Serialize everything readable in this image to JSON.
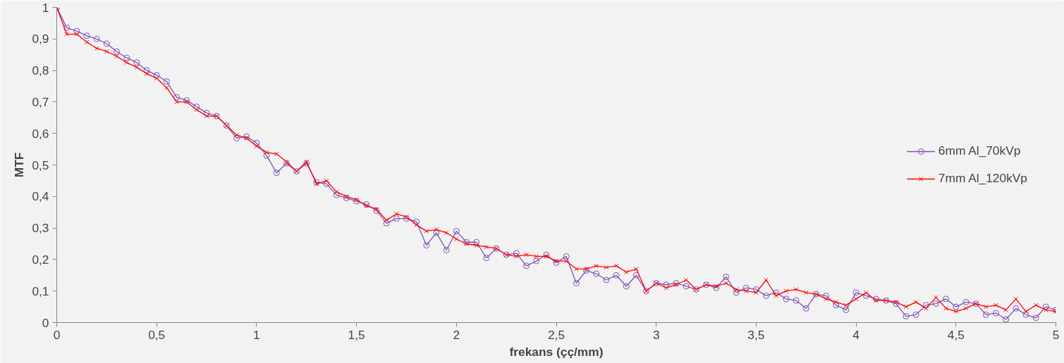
{
  "chart_data": {
    "type": "line",
    "xlabel": "frekans (çç/mm)",
    "ylabel": "MTF",
    "x": [
      0,
      0.05,
      0.1,
      0.15,
      0.2,
      0.25,
      0.3,
      0.35,
      0.4,
      0.45,
      0.5,
      0.55,
      0.6,
      0.65,
      0.7,
      0.75,
      0.8,
      0.85,
      0.9,
      0.95,
      1.0,
      1.05,
      1.1,
      1.15,
      1.2,
      1.25,
      1.3,
      1.35,
      1.4,
      1.45,
      1.5,
      1.55,
      1.6,
      1.65,
      1.7,
      1.75,
      1.8,
      1.85,
      1.9,
      1.95,
      2.0,
      2.05,
      2.1,
      2.15,
      2.2,
      2.25,
      2.3,
      2.35,
      2.4,
      2.45,
      2.5,
      2.55,
      2.6,
      2.65,
      2.7,
      2.75,
      2.8,
      2.85,
      2.9,
      2.95,
      3.0,
      3.05,
      3.1,
      3.15,
      3.2,
      3.25,
      3.3,
      3.35,
      3.4,
      3.45,
      3.5,
      3.55,
      3.6,
      3.65,
      3.7,
      3.75,
      3.8,
      3.85,
      3.9,
      3.95,
      4.0,
      4.05,
      4.1,
      4.15,
      4.2,
      4.25,
      4.3,
      4.35,
      4.4,
      4.45,
      4.5,
      4.55,
      4.6,
      4.65,
      4.7,
      4.75,
      4.8,
      4.85,
      4.9,
      4.95,
      5.0
    ],
    "series": [
      {
        "name": "6mm Al_70kVp",
        "color": "#7f52b8",
        "marker": "circle",
        "values": [
          1.0,
          0.935,
          0.925,
          0.91,
          0.9,
          0.885,
          0.86,
          0.84,
          0.825,
          0.8,
          0.785,
          0.765,
          0.715,
          0.705,
          0.685,
          0.665,
          0.655,
          0.625,
          0.585,
          0.59,
          0.57,
          0.53,
          0.475,
          0.505,
          0.48,
          0.505,
          0.445,
          0.44,
          0.405,
          0.395,
          0.385,
          0.375,
          0.355,
          0.315,
          0.33,
          0.33,
          0.32,
          0.245,
          0.285,
          0.23,
          0.29,
          0.255,
          0.255,
          0.205,
          0.235,
          0.215,
          0.22,
          0.18,
          0.195,
          0.215,
          0.19,
          0.21,
          0.125,
          0.165,
          0.155,
          0.135,
          0.15,
          0.115,
          0.15,
          0.1,
          0.125,
          0.12,
          0.125,
          0.115,
          0.105,
          0.12,
          0.11,
          0.145,
          0.095,
          0.11,
          0.105,
          0.085,
          0.095,
          0.075,
          0.07,
          0.045,
          0.09,
          0.085,
          0.055,
          0.04,
          0.095,
          0.085,
          0.075,
          0.07,
          0.06,
          0.02,
          0.025,
          0.055,
          0.06,
          0.075,
          0.05,
          0.065,
          0.06,
          0.025,
          0.03,
          0.01,
          0.045,
          0.025,
          0.015,
          0.05,
          0.04
        ]
      },
      {
        "name": "7mm Al_120kVp",
        "color": "#ff0000",
        "marker": "cross",
        "values": [
          1.0,
          0.915,
          0.915,
          0.89,
          0.87,
          0.86,
          0.845,
          0.825,
          0.81,
          0.79,
          0.775,
          0.745,
          0.7,
          0.7,
          0.675,
          0.655,
          0.655,
          0.625,
          0.595,
          0.585,
          0.56,
          0.54,
          0.535,
          0.51,
          0.48,
          0.51,
          0.44,
          0.45,
          0.415,
          0.4,
          0.39,
          0.37,
          0.36,
          0.325,
          0.345,
          0.335,
          0.31,
          0.29,
          0.295,
          0.285,
          0.265,
          0.25,
          0.245,
          0.24,
          0.235,
          0.215,
          0.21,
          0.215,
          0.21,
          0.21,
          0.195,
          0.195,
          0.17,
          0.17,
          0.18,
          0.175,
          0.18,
          0.16,
          0.17,
          0.1,
          0.125,
          0.11,
          0.12,
          0.135,
          0.105,
          0.12,
          0.115,
          0.125,
          0.105,
          0.1,
          0.095,
          0.135,
          0.085,
          0.1,
          0.105,
          0.095,
          0.09,
          0.075,
          0.065,
          0.055,
          0.075,
          0.095,
          0.07,
          0.07,
          0.065,
          0.05,
          0.065,
          0.045,
          0.08,
          0.045,
          0.035,
          0.045,
          0.06,
          0.05,
          0.055,
          0.04,
          0.075,
          0.035,
          0.055,
          0.04,
          0.035
        ]
      }
    ],
    "xlim": [
      0,
      5
    ],
    "ylim": [
      0,
      1
    ],
    "xticks": [
      0,
      {
        "value": 0.5,
        "label": "0,5"
      },
      1,
      {
        "value": 1.5,
        "label": "1,5"
      },
      2,
      {
        "value": 2.5,
        "label": "2,5"
      },
      3,
      {
        "value": 3.5,
        "label": "3,5"
      },
      4,
      {
        "value": 4.5,
        "label": "4,5"
      },
      5
    ],
    "yticks": [
      0,
      {
        "value": 0.1,
        "label": "0,1"
      },
      {
        "value": 0.2,
        "label": "0,2"
      },
      {
        "value": 0.3,
        "label": "0,3"
      },
      {
        "value": 0.4,
        "label": "0,4"
      },
      {
        "value": 0.5,
        "label": "0,5"
      },
      {
        "value": 0.6,
        "label": "0,6"
      },
      {
        "value": 0.7,
        "label": "0,7"
      },
      {
        "value": 0.8,
        "label": "0,8"
      },
      {
        "value": 0.9,
        "label": "0,9"
      },
      1
    ],
    "grid": false,
    "legend": "right",
    "line_style": "solid"
  }
}
